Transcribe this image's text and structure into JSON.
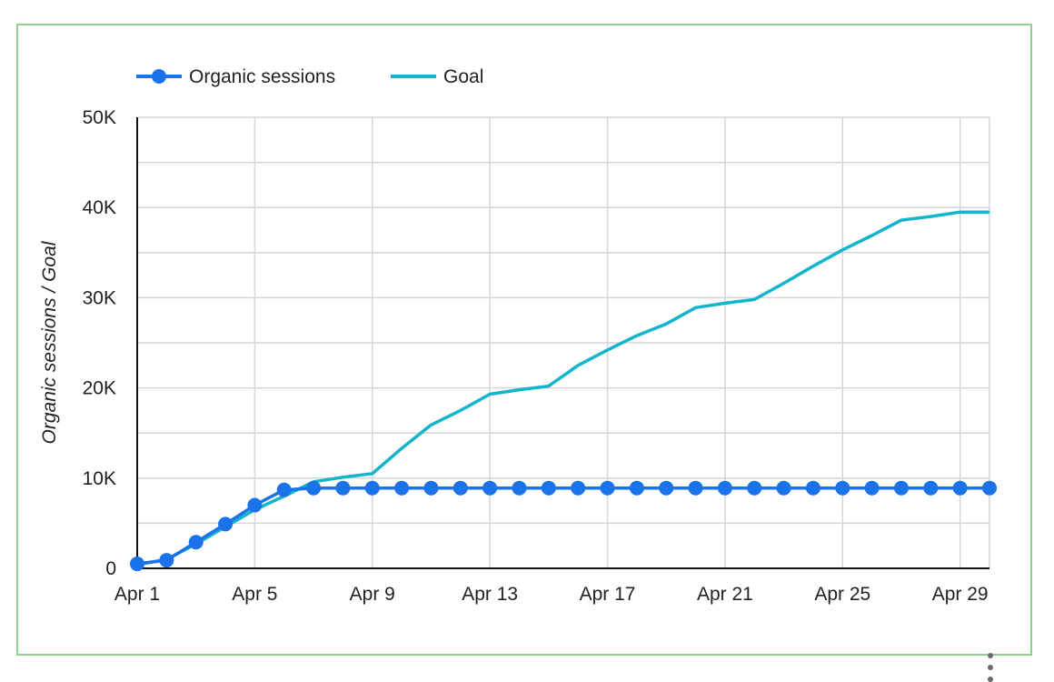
{
  "chart_data": {
    "type": "line",
    "title": "",
    "xlabel": "",
    "ylabel": "Organic sessions / Goal",
    "x": [
      "Apr 1",
      "Apr 2",
      "Apr 3",
      "Apr 4",
      "Apr 5",
      "Apr 6",
      "Apr 7",
      "Apr 8",
      "Apr 9",
      "Apr 10",
      "Apr 11",
      "Apr 12",
      "Apr 13",
      "Apr 14",
      "Apr 15",
      "Apr 16",
      "Apr 17",
      "Apr 18",
      "Apr 19",
      "Apr 20",
      "Apr 21",
      "Apr 22",
      "Apr 23",
      "Apr 24",
      "Apr 25",
      "Apr 26",
      "Apr 27",
      "Apr 28",
      "Apr 29",
      "Apr 30"
    ],
    "x_tick_labels": [
      "Apr 1",
      "Apr 5",
      "Apr 9",
      "Apr 13",
      "Apr 17",
      "Apr 21",
      "Apr 25",
      "Apr 29"
    ],
    "y_tick_labels": [
      "0",
      "10K",
      "20K",
      "30K",
      "40K",
      "50K"
    ],
    "ylim": [
      0,
      50000
    ],
    "grid": true,
    "legend_position": "top-left",
    "series": [
      {
        "name": "Organic sessions",
        "color": "#1a73e8",
        "markers": true,
        "values": [
          500,
          900,
          2900,
          4900,
          7000,
          8700,
          8900,
          8900,
          8900,
          8900,
          8900,
          8900,
          8900,
          8900,
          8900,
          8900,
          8900,
          8900,
          8900,
          8900,
          8900,
          8900,
          8900,
          8900,
          8900,
          8900,
          8900,
          8900,
          8900,
          8900
        ]
      },
      {
        "name": "Goal",
        "color": "#12b5cb",
        "markers": false,
        "values": [
          400,
          1000,
          2700,
          4600,
          6500,
          8000,
          9600,
          10100,
          10500,
          13300,
          15900,
          17500,
          19300,
          19800,
          20200,
          22500,
          24200,
          25800,
          27100,
          28900,
          29400,
          29800,
          31600,
          33500,
          35300,
          36900,
          38600,
          39000,
          39500,
          39500
        ]
      }
    ]
  }
}
